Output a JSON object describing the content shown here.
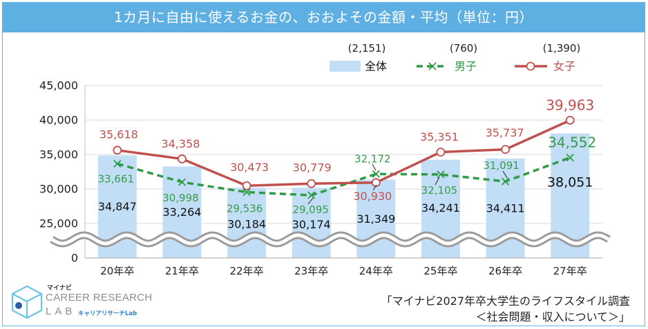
{
  "chart_data": {
    "type": "bar",
    "title": "1カ月に自由に使えるお金の、おおよその金額・平均（単位：円）",
    "categories": [
      "20年卒",
      "21年卒",
      "22年卒",
      "23年卒",
      "24年卒",
      "25年卒",
      "26年卒",
      "27年卒"
    ],
    "xlabel": "",
    "ylabel": "",
    "ylim": [
      25000,
      45000
    ],
    "axis_break": [
      0,
      25000
    ],
    "yticks": [
      0,
      25000,
      30000,
      35000,
      40000,
      45000
    ],
    "grid": true,
    "legend_position": "top-right",
    "series": [
      {
        "name": "全体",
        "n": "(2,151)",
        "type": "bar",
        "color": "#c2def6",
        "values": [
          34847,
          33264,
          30184,
          30174,
          31349,
          34241,
          34411,
          38051
        ]
      },
      {
        "name": "男子",
        "n": "(760)",
        "type": "line",
        "dashed": true,
        "marker": "x-marker-icon",
        "color": "#2e9b45",
        "values": [
          33661,
          30998,
          29536,
          29095,
          32172,
          32105,
          31091,
          34552
        ]
      },
      {
        "name": "女子",
        "n": "(1,390)",
        "type": "line",
        "dashed": false,
        "marker": "circle-marker-icon",
        "color": "#c0504d",
        "values": [
          35618,
          34358,
          30473,
          30779,
          30930,
          35351,
          35737,
          39963
        ]
      }
    ]
  },
  "logo": {
    "brand_small": "マイナビ",
    "line1": "CAREER RESEARCH",
    "line2": "LAB",
    "sub": "キャリアリサーチLab",
    "icon": "cube-logo-icon"
  },
  "source": {
    "line1": "「マイナビ2027年卒大学生のライフスタイル調査",
    "line2": "＜社会問題・収入について＞」"
  },
  "colors": {
    "title_band": "#5fb0e2",
    "frame": "#62b2e3",
    "logo_blue": "#2e7fc8",
    "gridline": "#d9d9d9"
  }
}
